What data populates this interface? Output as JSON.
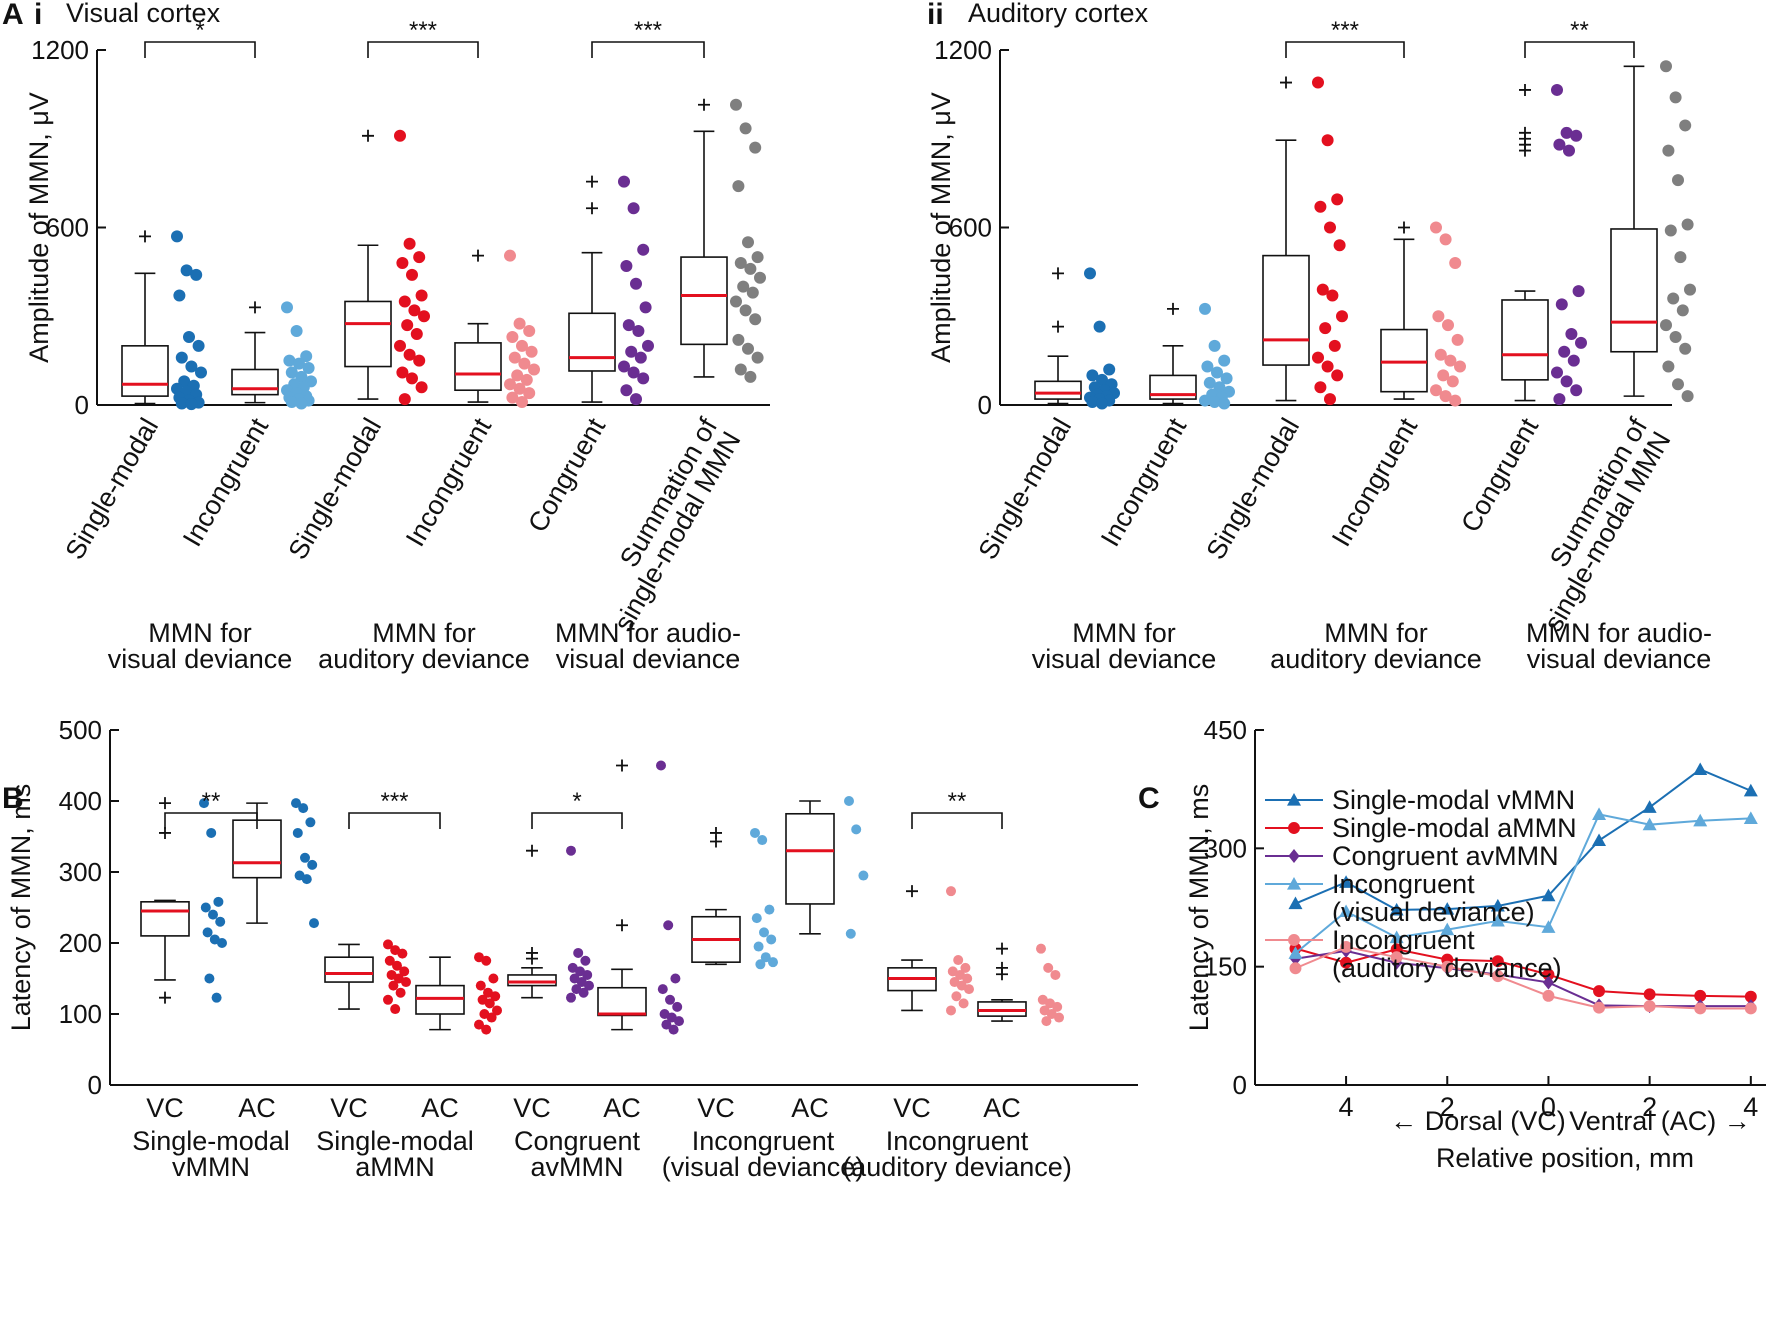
{
  "colors": {
    "single_visual": "#1b6fb3",
    "single_auditory": "#e3101f",
    "congruent": "#6a2e92",
    "summation": "#7f7f7f",
    "incongruent_visual": "#5fa9da",
    "incongruent_auditory": "#f08a8f",
    "median": "#e3101f"
  },
  "panel_labels": {
    "A": "A",
    "Ai": "i",
    "Aii": "ii",
    "B": "B",
    "C": "C"
  },
  "chart_data": [
    {
      "id": "Ai",
      "type": "box-strip",
      "title": "Visual cortex",
      "ylabel": "Amplitude of MMN, μV",
      "ylim": [
        0,
        1200
      ],
      "yticks": [
        0,
        600,
        1200
      ],
      "category_labels": [
        "Single-modal",
        "Incongruent",
        "Single-modal",
        "Incongruent",
        "Congruent",
        "Summation of\nsingle-modal MMN"
      ],
      "group_labels": [
        "MMN for\nvisual deviance",
        "MMN for\nauditory deviance",
        "MMN for audio-\nvisual deviance"
      ],
      "significance": [
        {
          "from": 0,
          "to": 1,
          "label": "*"
        },
        {
          "from": 2,
          "to": 3,
          "label": "***"
        },
        {
          "from": 4,
          "to": 5,
          "label": "***"
        }
      ],
      "boxes": [
        {
          "color": "single_visual",
          "min": 5,
          "q1": 30,
          "median": 70,
          "q3": 200,
          "max": 445,
          "outliers": [
            570
          ],
          "points": [
            570,
            455,
            440,
            370,
            230,
            200,
            160,
            130,
            110,
            80,
            65,
            55,
            45,
            35,
            25,
            15,
            8,
            5,
            3
          ]
        },
        {
          "color": "incongruent_visual",
          "min": 8,
          "q1": 35,
          "median": 55,
          "q3": 120,
          "max": 245,
          "outliers": [
            330
          ],
          "points": [
            330,
            250,
            165,
            150,
            140,
            125,
            110,
            95,
            80,
            70,
            60,
            50,
            40,
            30,
            25,
            20,
            15,
            10,
            5
          ]
        },
        {
          "color": "single_auditory",
          "min": 20,
          "q1": 130,
          "median": 275,
          "q3": 350,
          "max": 540,
          "outliers": [
            910
          ],
          "points": [
            910,
            545,
            500,
            480,
            440,
            370,
            350,
            320,
            300,
            270,
            240,
            200,
            170,
            150,
            110,
            90,
            60,
            20
          ]
        },
        {
          "color": "incongruent_auditory",
          "min": 10,
          "q1": 50,
          "median": 105,
          "q3": 210,
          "max": 275,
          "outliers": [
            505
          ],
          "points": [
            505,
            275,
            250,
            230,
            200,
            180,
            160,
            140,
            120,
            100,
            85,
            70,
            55,
            40,
            25,
            10
          ]
        },
        {
          "color": "congruent",
          "min": 10,
          "q1": 115,
          "median": 160,
          "q3": 310,
          "max": 515,
          "outliers": [
            755,
            665
          ],
          "points": [
            755,
            665,
            525,
            470,
            410,
            330,
            270,
            250,
            200,
            180,
            160,
            130,
            110,
            90,
            50,
            20
          ]
        },
        {
          "color": "summation",
          "min": 95,
          "q1": 205,
          "median": 370,
          "q3": 500,
          "max": 925,
          "outliers": [
            1015
          ],
          "points": [
            1015,
            935,
            870,
            740,
            550,
            500,
            480,
            460,
            430,
            400,
            380,
            350,
            320,
            290,
            220,
            190,
            160,
            120,
            95
          ]
        }
      ]
    },
    {
      "id": "Aii",
      "type": "box-strip",
      "title": "Auditory cortex",
      "ylabel": "Amplitude of MMN, μV",
      "ylim": [
        0,
        1200
      ],
      "yticks": [
        0,
        600,
        1200
      ],
      "category_labels": [
        "Single-modal",
        "Incongruent",
        "Single-modal",
        "Incongruent",
        "Congruent",
        "Summation of\nsingle-modal MMN"
      ],
      "group_labels": [
        "MMN for\nvisual deviance",
        "MMN for\nauditory deviance",
        "MMN for audio-\nvisual deviance"
      ],
      "significance": [
        {
          "from": 2,
          "to": 3,
          "label": "***"
        },
        {
          "from": 4,
          "to": 5,
          "label": "**"
        }
      ],
      "boxes": [
        {
          "color": "single_visual",
          "min": 5,
          "q1": 20,
          "median": 40,
          "q3": 80,
          "max": 165,
          "outliers": [
            445,
            265
          ],
          "points": [
            445,
            265,
            120,
            100,
            85,
            70,
            60,
            50,
            40,
            35,
            30,
            25,
            20,
            15,
            10,
            5
          ]
        },
        {
          "color": "incongruent_visual",
          "min": 5,
          "q1": 20,
          "median": 35,
          "q3": 100,
          "max": 200,
          "outliers": [
            325
          ],
          "points": [
            325,
            200,
            150,
            130,
            110,
            90,
            75,
            60,
            45,
            35,
            25,
            15,
            10,
            5
          ]
        },
        {
          "color": "single_auditory",
          "min": 15,
          "q1": 135,
          "median": 220,
          "q3": 505,
          "max": 895,
          "outliers": [
            1090
          ],
          "points": [
            1090,
            895,
            695,
            670,
            600,
            540,
            390,
            370,
            300,
            260,
            200,
            160,
            130,
            100,
            60,
            20
          ]
        },
        {
          "color": "incongruent_auditory",
          "min": 20,
          "q1": 45,
          "median": 145,
          "q3": 255,
          "max": 560,
          "outliers": [
            600
          ],
          "points": [
            600,
            560,
            480,
            300,
            270,
            220,
            170,
            150,
            130,
            100,
            80,
            50,
            30,
            15
          ]
        },
        {
          "color": "congruent",
          "min": 15,
          "q1": 85,
          "median": 170,
          "q3": 355,
          "max": 385,
          "outliers": [
            1065,
            920,
            900,
            880,
            860
          ],
          "points": [
            1065,
            920,
            910,
            880,
            860,
            385,
            340,
            240,
            210,
            180,
            150,
            110,
            80,
            50,
            20
          ]
        },
        {
          "color": "summation",
          "min": 30,
          "q1": 180,
          "median": 280,
          "q3": 595,
          "max": 1145,
          "outliers": [],
          "points": [
            1145,
            1040,
            945,
            860,
            760,
            610,
            590,
            500,
            390,
            360,
            320,
            270,
            230,
            190,
            130,
            70,
            30
          ]
        }
      ]
    },
    {
      "id": "B",
      "type": "box-strip",
      "ylabel": "Latency of MMN, ms",
      "ylim": [
        0,
        500
      ],
      "yticks": [
        0,
        100,
        200,
        300,
        400,
        500
      ],
      "category_labels": [
        "VC",
        "AC",
        "VC",
        "AC",
        "VC",
        "AC",
        "VC",
        "AC",
        "VC",
        "AC"
      ],
      "group_labels": [
        "Single-modal\nvMMN",
        "Single-modal\naMMN",
        "Congruent\navMMN",
        "Incongruent\n(visual deviance)",
        "Incongruent\n(auditory deviance)"
      ],
      "significance": [
        {
          "from": 0,
          "to": 1,
          "label": "**"
        },
        {
          "from": 2,
          "to": 3,
          "label": "***"
        },
        {
          "from": 4,
          "to": 5,
          "label": "*"
        },
        {
          "from": 8,
          "to": 9,
          "label": "**"
        }
      ],
      "boxes": [
        {
          "color": "single_visual",
          "min": 148,
          "q1": 210,
          "median": 245,
          "q3": 258,
          "max": 260,
          "outliers": [
            397,
            355,
            123
          ],
          "points": [
            397,
            355,
            258,
            250,
            240,
            230,
            215,
            205,
            200,
            150,
            123
          ]
        },
        {
          "color": "single_visual",
          "min": 228,
          "q1": 292,
          "median": 313,
          "q3": 373,
          "max": 397,
          "outliers": [],
          "points": [
            397,
            390,
            370,
            355,
            320,
            310,
            295,
            290,
            228
          ]
        },
        {
          "color": "single_auditory",
          "min": 107,
          "q1": 145,
          "median": 157,
          "q3": 180,
          "max": 198,
          "outliers": [],
          "points": [
            198,
            190,
            185,
            175,
            168,
            160,
            155,
            150,
            145,
            140,
            130,
            120,
            107
          ]
        },
        {
          "color": "single_auditory",
          "min": 78,
          "q1": 100,
          "median": 122,
          "q3": 140,
          "max": 180,
          "outliers": [],
          "points": [
            180,
            175,
            150,
            140,
            130,
            125,
            120,
            115,
            105,
            100,
            95,
            85,
            78
          ]
        },
        {
          "color": "congruent",
          "min": 123,
          "q1": 140,
          "median": 145,
          "q3": 155,
          "max": 165,
          "outliers": [
            330,
            186,
            178
          ],
          "points": [
            330,
            186,
            175,
            165,
            160,
            155,
            150,
            145,
            140,
            135,
            130,
            123
          ]
        },
        {
          "color": "congruent",
          "min": 78,
          "q1": 98,
          "median": 100,
          "q3": 137,
          "max": 163,
          "outliers": [
            450,
            225
          ],
          "points": [
            450,
            225,
            150,
            135,
            120,
            110,
            100,
            95,
            90,
            85,
            78
          ]
        },
        {
          "color": "incongruent_visual",
          "min": 170,
          "q1": 173,
          "median": 205,
          "q3": 237,
          "max": 247,
          "outliers": [
            355,
            343
          ],
          "points": [
            355,
            345,
            247,
            235,
            215,
            205,
            195,
            180,
            173,
            170
          ]
        },
        {
          "color": "incongruent_visual",
          "min": 213,
          "q1": 255,
          "median": 330,
          "q3": 382,
          "max": 400,
          "outliers": [],
          "points": [
            400,
            360,
            295,
            213
          ]
        },
        {
          "color": "incongruent_auditory",
          "min": 105,
          "q1": 133,
          "median": 150,
          "q3": 165,
          "max": 176,
          "outliers": [
            273
          ],
          "points": [
            273,
            176,
            165,
            160,
            155,
            150,
            145,
            140,
            135,
            125,
            115,
            105
          ]
        },
        {
          "color": "incongruent_auditory",
          "min": 90,
          "q1": 97,
          "median": 105,
          "q3": 117,
          "max": 120,
          "outliers": [
            192,
            165,
            156
          ],
          "points": [
            192,
            165,
            155,
            120,
            115,
            110,
            105,
            100,
            95,
            90
          ]
        }
      ]
    },
    {
      "id": "C",
      "type": "line",
      "ylabel": "Latency of MMN, ms",
      "xlabel": "Relative position, mm",
      "ylim": [
        0,
        450
      ],
      "yticks": [
        0,
        150,
        300,
        450
      ],
      "x": [
        -5,
        -4,
        -3,
        -2,
        -1,
        0,
        1,
        2,
        3,
        4
      ],
      "xtick_values": [
        -4,
        -2,
        0,
        2,
        4
      ],
      "xtick_labels": [
        "4",
        "2",
        "0",
        "2",
        "4"
      ],
      "direction_left": "← Dorsal (VC)",
      "direction_right": "Ventral (AC) →",
      "series": [
        {
          "name": "Single-modal vMMN",
          "color": "single_visual",
          "marker": "triangle",
          "values": [
            230,
            257,
            222,
            223,
            227,
            240,
            310,
            352,
            400,
            373
          ]
        },
        {
          "name": "Single-modal aMMN",
          "color": "single_auditory",
          "marker": "circle",
          "values": [
            173,
            155,
            172,
            159,
            157,
            140,
            119,
            115,
            113,
            112
          ]
        },
        {
          "name": "Congruent avMMN",
          "color": "congruent",
          "marker": "diamond",
          "values": [
            160,
            170,
            155,
            148,
            140,
            130,
            101,
            100,
            100,
            100
          ]
        },
        {
          "name": "Incongruent\n(visual deviance)",
          "color": "incongruent_visual",
          "marker": "triangle",
          "values": [
            167,
            220,
            187,
            197,
            208,
            200,
            343,
            330,
            335,
            338
          ]
        },
        {
          "name": "Incongruent\n(auditory deviance)",
          "color": "incongruent_auditory",
          "marker": "circle",
          "values": [
            148,
            175,
            162,
            150,
            138,
            113,
            98,
            100,
            97,
            97
          ]
        }
      ]
    }
  ]
}
